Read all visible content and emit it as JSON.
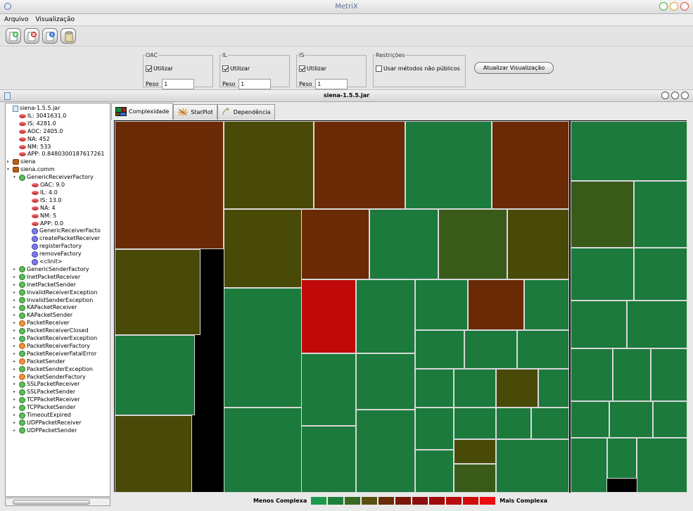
{
  "window": {
    "title": "MetriX"
  },
  "menu": {
    "items": [
      "Arquivo",
      "Visualização"
    ]
  },
  "params": {
    "groups": [
      {
        "legend": "OAC",
        "check_label": "Utilizar",
        "checked": true,
        "peso_label": "Peso",
        "peso_value": "1"
      },
      {
        "legend": "IL",
        "check_label": "Utilizar",
        "checked": true,
        "peso_label": "Peso",
        "peso_value": "1"
      },
      {
        "legend": "IS",
        "check_label": "Utilizar",
        "checked": true,
        "peso_label": "Peso",
        "peso_value": "1"
      }
    ],
    "restricoes": {
      "legend": "Restrições",
      "check_label": "Usar métodos não públicos",
      "checked": false
    },
    "update_button": "Atualizar Visualização"
  },
  "document": {
    "title": "siena-1.5.5.jar"
  },
  "tree": [
    {
      "label": "siena-1.5.5.jar",
      "icon": "jar",
      "level": 0,
      "toggle": ""
    },
    {
      "label": "IL: 3041631.0",
      "icon": "metric",
      "level": 1,
      "toggle": ""
    },
    {
      "label": "IS: 4281.0",
      "icon": "metric",
      "level": 1,
      "toggle": ""
    },
    {
      "label": "AOC: 2405.0",
      "icon": "metric",
      "level": 1,
      "toggle": ""
    },
    {
      "label": "NA: 452",
      "icon": "metric",
      "level": 1,
      "toggle": ""
    },
    {
      "label": "NM: 533",
      "icon": "metric",
      "level": 1,
      "toggle": ""
    },
    {
      "label": "APP: 0.8480300187617261",
      "icon": "metric",
      "level": 1,
      "toggle": ""
    },
    {
      "label": "siena",
      "icon": "pkg",
      "level": 0,
      "toggle": "▸"
    },
    {
      "label": "siena.comm",
      "icon": "pkg",
      "level": 0,
      "toggle": "▾"
    },
    {
      "label": "GenericReceiverFactory",
      "icon": "cls",
      "level": 1,
      "toggle": "▾"
    },
    {
      "label": "OAC: 9.0",
      "icon": "metric",
      "level": 3,
      "toggle": ""
    },
    {
      "label": "IL: 4.0",
      "icon": "metric",
      "level": 3,
      "toggle": ""
    },
    {
      "label": "IS: 13.0",
      "icon": "metric",
      "level": 3,
      "toggle": ""
    },
    {
      "label": "NA: 4",
      "icon": "metric",
      "level": 3,
      "toggle": ""
    },
    {
      "label": "NM: 5",
      "icon": "metric",
      "level": 3,
      "toggle": ""
    },
    {
      "label": "APP: 0.0",
      "icon": "metric",
      "level": 3,
      "toggle": ""
    },
    {
      "label": "GenericReceiverFacto",
      "icon": "meth",
      "level": 3,
      "toggle": ""
    },
    {
      "label": "createPacketReceiver",
      "icon": "meth",
      "level": 3,
      "toggle": ""
    },
    {
      "label": "registerFactory",
      "icon": "meth",
      "level": 3,
      "toggle": ""
    },
    {
      "label": "removeFactory",
      "icon": "meth",
      "level": 3,
      "toggle": ""
    },
    {
      "label": "<clinit>",
      "icon": "meth",
      "level": 3,
      "toggle": ""
    },
    {
      "label": "GenericSenderFactory",
      "icon": "cls",
      "level": 1,
      "toggle": "▸"
    },
    {
      "label": "InetPacketReceiver",
      "icon": "cls",
      "level": 1,
      "toggle": "▸"
    },
    {
      "label": "InetPacketSender",
      "icon": "cls",
      "level": 1,
      "toggle": "▸"
    },
    {
      "label": "InvalidReceiverException",
      "icon": "cls",
      "level": 1,
      "toggle": "▸"
    },
    {
      "label": "InvalidSenderException",
      "icon": "cls",
      "level": 1,
      "toggle": "▸"
    },
    {
      "label": "KAPacketReceiver",
      "icon": "cls",
      "level": 1,
      "toggle": "▸"
    },
    {
      "label": "KAPacketSender",
      "icon": "cls",
      "level": 1,
      "toggle": "▸"
    },
    {
      "label": "PacketReceiver",
      "icon": "int",
      "level": 1,
      "toggle": "▸"
    },
    {
      "label": "PacketReceiverClosed",
      "icon": "cls",
      "level": 1,
      "toggle": "▸"
    },
    {
      "label": "PacketReceiverException",
      "icon": "cls",
      "level": 1,
      "toggle": "▸"
    },
    {
      "label": "PacketReceiverFactory",
      "icon": "int",
      "level": 1,
      "toggle": "▸"
    },
    {
      "label": "PacketReceiverFatalError",
      "icon": "cls",
      "level": 1,
      "toggle": "▸"
    },
    {
      "label": "PacketSender",
      "icon": "int",
      "level": 1,
      "toggle": "▸"
    },
    {
      "label": "PacketSenderException",
      "icon": "cls",
      "level": 1,
      "toggle": "▸"
    },
    {
      "label": "PacketSenderFactory",
      "icon": "int",
      "level": 1,
      "toggle": "▸"
    },
    {
      "label": "SSLPacketReceiver",
      "icon": "cls",
      "level": 1,
      "toggle": "▸"
    },
    {
      "label": "SSLPacketSender",
      "icon": "cls",
      "level": 1,
      "toggle": "▸"
    },
    {
      "label": "TCPPacketReceiver",
      "icon": "cls",
      "level": 1,
      "toggle": "▸"
    },
    {
      "label": "TCPPacketSender",
      "icon": "cls",
      "level": 1,
      "toggle": "▸"
    },
    {
      "label": "TimeoutExpired",
      "icon": "cls",
      "level": 1,
      "toggle": "▸"
    },
    {
      "label": "UDPPacketReceiver",
      "icon": "cls",
      "level": 1,
      "toggle": "▸"
    },
    {
      "label": "UDPPacketSender",
      "icon": "cls",
      "level": 1,
      "toggle": "▸"
    }
  ],
  "tabs": [
    {
      "label": "Complexidade",
      "active": true,
      "icon": "treemap-icon"
    },
    {
      "label": "StarPlot",
      "active": false,
      "icon": "starplot-icon"
    },
    {
      "label": "Dependência",
      "active": false,
      "icon": "dependency-icon"
    }
  ],
  "legend": {
    "low_label": "Menos Complexa",
    "high_label": "Mais Complexa",
    "colors": [
      "#1a9a4a",
      "#1f7f3a",
      "#3a6a20",
      "#5a5010",
      "#6a2c08",
      "#7a1808",
      "#8c0e0e",
      "#a00a0a",
      "#b80c0c",
      "#d00c0c",
      "#e81010"
    ]
  },
  "colors": {
    "green": "#1b7a3c",
    "olive": "#4a4a08",
    "olive_green": "#3a5a1a",
    "brown": "#6a2a06",
    "red": "#c00a0a"
  }
}
